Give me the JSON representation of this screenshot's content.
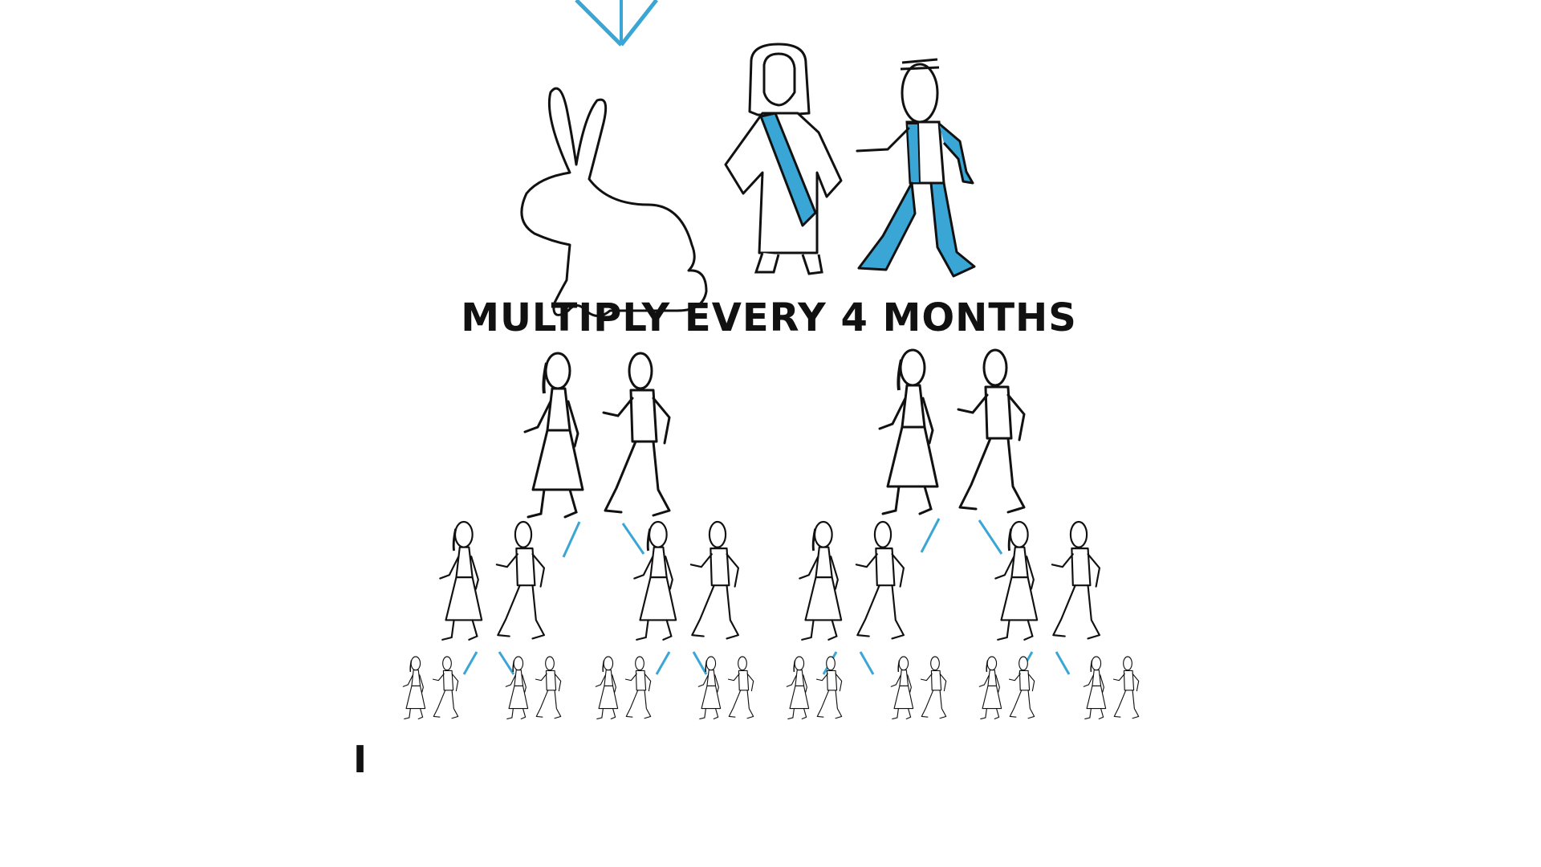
{
  "headline": "MULTIPLY EVERY 4 MONTHS",
  "cursor_char": "I",
  "colors": {
    "ink": "#111111",
    "accent": "#3aa6d6",
    "paper": "#ffffff"
  },
  "icons": {
    "top": [
      "rabbit-icon",
      "robed-figure-icon",
      "walking-man-icon"
    ],
    "couple": [
      "woman-icon",
      "man-icon"
    ]
  },
  "generations": [
    {
      "couples": 2
    },
    {
      "couples": 4
    },
    {
      "couples": 8
    }
  ]
}
